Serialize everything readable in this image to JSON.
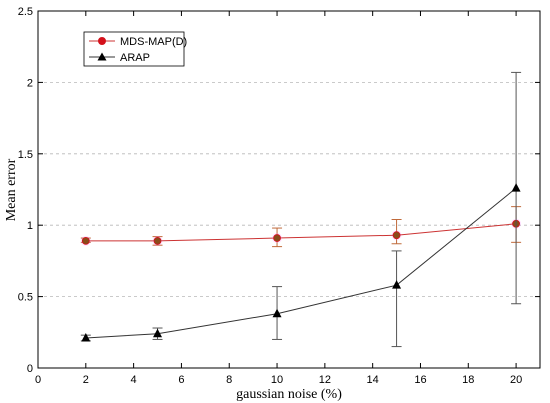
{
  "chart_data": {
    "type": "line",
    "title": "",
    "xlabel": "gaussian noise (%)",
    "ylabel": "Mean error",
    "xlim": [
      0,
      21
    ],
    "ylim": [
      0,
      2.5
    ],
    "xticks": [
      0,
      2,
      4,
      6,
      8,
      10,
      12,
      14,
      16,
      18,
      20
    ],
    "yticks": [
      0,
      0.5,
      1,
      1.5,
      2,
      2.5
    ],
    "xtick_labels": [
      "0",
      "2",
      "4",
      "6",
      "8",
      "10",
      "12",
      "14",
      "16",
      "18",
      "20"
    ],
    "ytick_labels": [
      "0",
      "0.5",
      "1",
      "1.5",
      "2",
      "2.5"
    ],
    "grid": "y-dashed",
    "legend_position": "top-left",
    "series": [
      {
        "name": "MDS-MAP(D)",
        "color": "#cc3333",
        "marker": "circle",
        "marker_color": "#d4111b",
        "errorbar_color": "#c06a3a",
        "x": [
          2,
          5,
          10,
          15,
          20
        ],
        "y": [
          0.89,
          0.89,
          0.91,
          0.93,
          1.01
        ],
        "err_low": [
          0.88,
          0.86,
          0.85,
          0.87,
          0.88
        ],
        "err_high": [
          0.91,
          0.92,
          0.98,
          1.04,
          1.13
        ]
      },
      {
        "name": "ARAP",
        "color": "#333333",
        "marker": "triangle",
        "marker_color": "#000000",
        "errorbar_color": "#555555",
        "x": [
          2,
          5,
          10,
          15,
          20
        ],
        "y": [
          0.21,
          0.24,
          0.38,
          0.58,
          1.26
        ],
        "err_low": [
          0.19,
          0.2,
          0.2,
          0.15,
          0.45
        ],
        "err_high": [
          0.23,
          0.28,
          0.57,
          0.82,
          2.07
        ]
      }
    ]
  }
}
